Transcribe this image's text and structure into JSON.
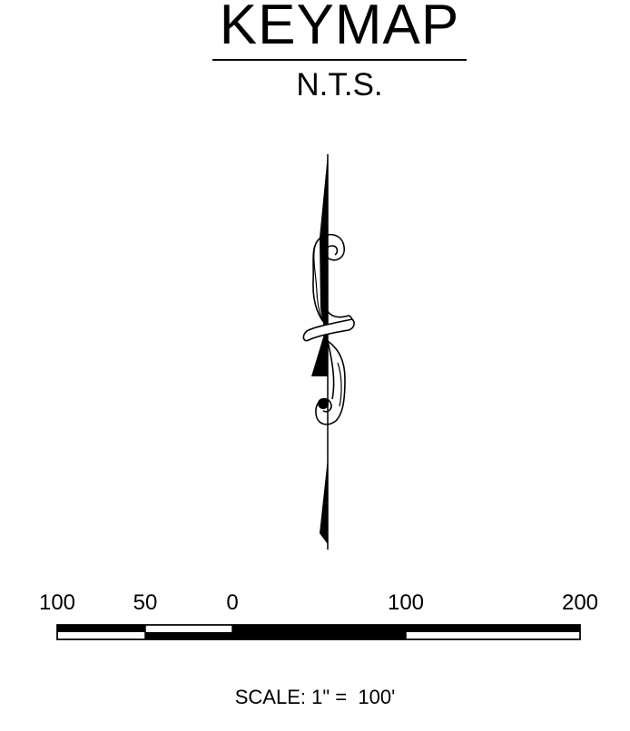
{
  "title": "KEYMAP",
  "subtitle": "N.T.S.",
  "north_arrow": {
    "icon": "north-arrow-icon"
  },
  "scale_bar": {
    "labels": [
      "100",
      "50",
      "0",
      "100",
      "200"
    ],
    "segments": [
      "black",
      "white",
      "black",
      "black",
      "white"
    ]
  },
  "scale_note": {
    "prefix": "SCALE: 1\" = ",
    "value": "100'"
  },
  "colors": {
    "ink": "#000000",
    "paper": "#ffffff"
  }
}
